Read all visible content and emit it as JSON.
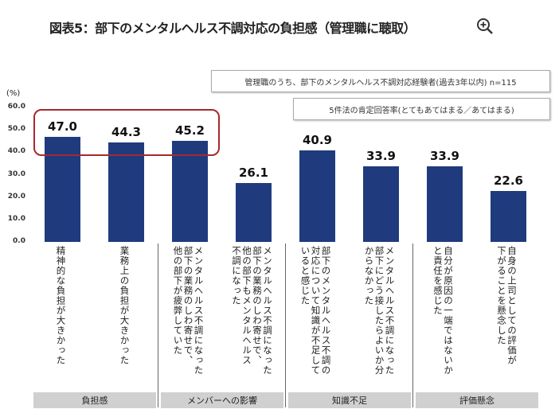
{
  "title": "図表5：部下のメンタルヘルス不調対応の負担感（管理職に聴取）",
  "zoom_icon": "zoom-in-icon",
  "chart_data": {
    "type": "bar",
    "ylabel": "(%)",
    "ylim": [
      0,
      60
    ],
    "yticks": [
      "0.0",
      "10.0",
      "20.0",
      "30.0",
      "40.0",
      "50.0",
      "60.0"
    ],
    "grid": false,
    "notes": [
      "管理職のうち、部下のメンタルヘルス不調対応経験者(過去3年以内) n=115",
      "5件法の肯定回答率(とてもあてはまる／あてはまる)"
    ],
    "categories": [
      "精神的な負担が大きかった",
      "業務上の負担が大きかった",
      "メンタルヘルス不調になった\n部下の業務のしわ寄せで、\n他の部下が疲弊していた",
      "メンタルヘルス不調になった\n部下の業務のしわ寄せで、\n他の部下もメンタルヘルス\n不調になった",
      "部下のメンタルヘルス不調の\n対応について知識が不足して\nいると感じた",
      "メンタルヘルス不調になった\n部下にどう接したらよいか分\nからなかった",
      "自分が原因の一端ではないか\nと責任を感じた",
      "自身の上司としての評価が\n下がることを懸念した"
    ],
    "values": [
      47.0,
      44.3,
      45.2,
      26.1,
      40.9,
      33.9,
      33.9,
      22.6
    ],
    "value_labels": [
      "47.0",
      "44.3",
      "45.2",
      "26.1",
      "40.9",
      "33.9",
      "33.9",
      "22.6"
    ],
    "groups": [
      "負担感",
      "メンバーへの影響",
      "知識不足",
      "評価懸念"
    ],
    "highlighted_categories": [
      0,
      1,
      2
    ],
    "bar_color": "#1f3b7e",
    "highlight_color": "#a52a2a"
  }
}
